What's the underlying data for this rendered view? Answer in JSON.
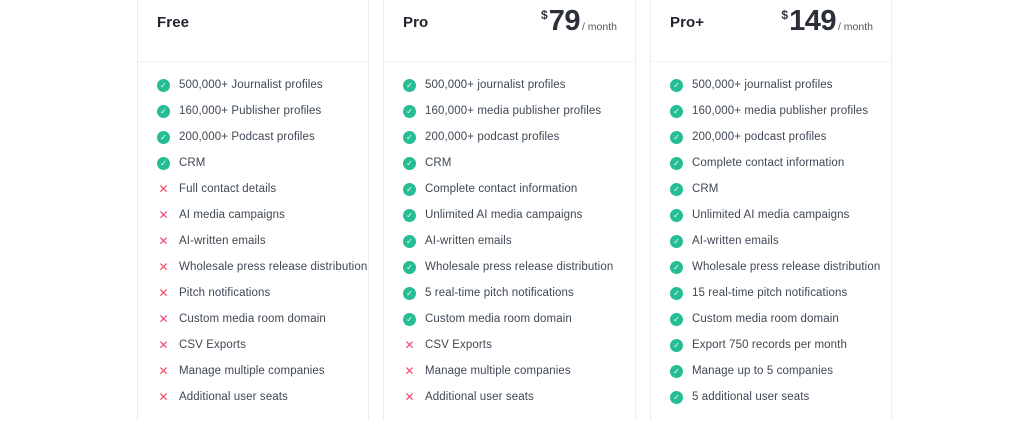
{
  "icons": {
    "check": "✓",
    "cross": "✕"
  },
  "colors": {
    "check_green": "#26bd94",
    "cross_red": "#ed4a6e",
    "card_border": "#e9edf1"
  },
  "plans": [
    {
      "name": "Free",
      "currency": "",
      "price": "",
      "period": "",
      "features": [
        {
          "included": true,
          "label": "500,000+ Journalist profiles"
        },
        {
          "included": true,
          "label": "160,000+ Publisher profiles"
        },
        {
          "included": true,
          "label": "200,000+ Podcast profiles"
        },
        {
          "included": true,
          "label": "CRM"
        },
        {
          "included": false,
          "label": "Full contact details"
        },
        {
          "included": false,
          "label": "AI media campaigns"
        },
        {
          "included": false,
          "label": "AI-written emails"
        },
        {
          "included": false,
          "label": "Wholesale press release distribution"
        },
        {
          "included": false,
          "label": "Pitch notifications"
        },
        {
          "included": false,
          "label": "Custom media room domain"
        },
        {
          "included": false,
          "label": "CSV Exports"
        },
        {
          "included": false,
          "label": "Manage multiple companies"
        },
        {
          "included": false,
          "label": "Additional user seats"
        }
      ]
    },
    {
      "name": "Pro",
      "currency": "$",
      "price": "79",
      "period": "/ month",
      "features": [
        {
          "included": true,
          "label": "500,000+ journalist profiles"
        },
        {
          "included": true,
          "label": "160,000+ media publisher profiles"
        },
        {
          "included": true,
          "label": "200,000+ podcast profiles"
        },
        {
          "included": true,
          "label": "CRM"
        },
        {
          "included": true,
          "label": "Complete contact information"
        },
        {
          "included": true,
          "label": "Unlimited AI media campaigns"
        },
        {
          "included": true,
          "label": "AI-written emails"
        },
        {
          "included": true,
          "label": "Wholesale press release distribution"
        },
        {
          "included": true,
          "label": "5 real-time pitch notifications"
        },
        {
          "included": true,
          "label": "Custom media room domain"
        },
        {
          "included": false,
          "label": "CSV Exports"
        },
        {
          "included": false,
          "label": "Manage multiple companies"
        },
        {
          "included": false,
          "label": "Additional user seats"
        }
      ]
    },
    {
      "name": "Pro+",
      "currency": "$",
      "price": "149",
      "period": "/ month",
      "features": [
        {
          "included": true,
          "label": "500,000+ journalist profiles"
        },
        {
          "included": true,
          "label": "160,000+ media publisher profiles"
        },
        {
          "included": true,
          "label": "200,000+ podcast profiles"
        },
        {
          "included": true,
          "label": "Complete contact information"
        },
        {
          "included": true,
          "label": "CRM"
        },
        {
          "included": true,
          "label": "Unlimited AI media campaigns"
        },
        {
          "included": true,
          "label": "AI-written emails"
        },
        {
          "included": true,
          "label": "Wholesale press release distribution"
        },
        {
          "included": true,
          "label": "15 real-time pitch notifications"
        },
        {
          "included": true,
          "label": "Custom media room domain"
        },
        {
          "included": true,
          "label": "Export 750 records per month"
        },
        {
          "included": true,
          "label": "Manage up to 5 companies"
        },
        {
          "included": true,
          "label": "5 additional user seats"
        }
      ]
    }
  ]
}
